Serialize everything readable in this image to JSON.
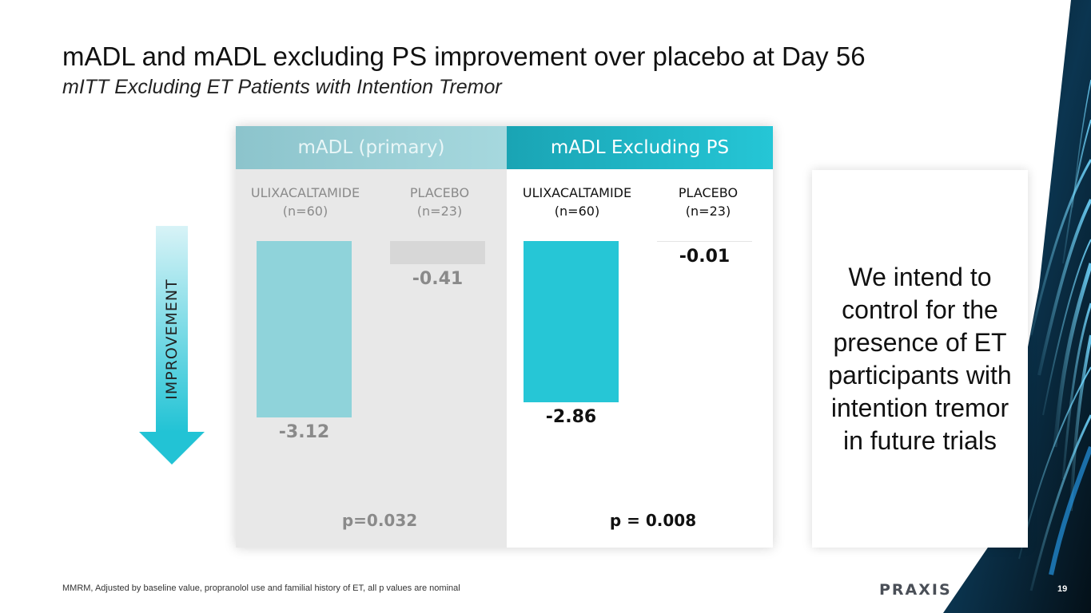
{
  "slide": {
    "title": "mADL and mADL excluding PS improvement over placebo at Day 56",
    "subtitle": "mITT Excluding ET Patients with Intention Tremor",
    "arrow_label": "IMPROVEMENT",
    "note": "We intend to control for the presence of ET participants with intention tremor in future trials",
    "footnote": "MMRM, Adjusted by baseline value, propranolol use and familial history of ET, all p values are nominal",
    "logo": "PRAXIS",
    "page_number": "19"
  },
  "chart_data": [
    {
      "type": "bar",
      "title": "mADL (primary)",
      "categories": [
        "ULIXACALTAMIDE",
        "PLACEBO"
      ],
      "category_n": [
        "(n=60)",
        "(n=23)"
      ],
      "values": [
        -3.12,
        -0.41
      ],
      "value_labels": [
        "-3.12",
        "-0.41"
      ],
      "p_value": "p=0.032",
      "colors": [
        "#8fd3da",
        "#d7d7d7"
      ]
    },
    {
      "type": "bar",
      "title": "mADL Excluding PS",
      "categories": [
        "ULIXACALTAMIDE",
        "PLACEBO"
      ],
      "category_n": [
        "(n=60)",
        "(n=23)"
      ],
      "values": [
        -2.86,
        -0.01
      ],
      "value_labels": [
        "-2.86",
        "-0.01"
      ],
      "p_value": "p = 0.008",
      "colors": [
        "#26c6d6",
        "#e5e5e5"
      ]
    }
  ]
}
